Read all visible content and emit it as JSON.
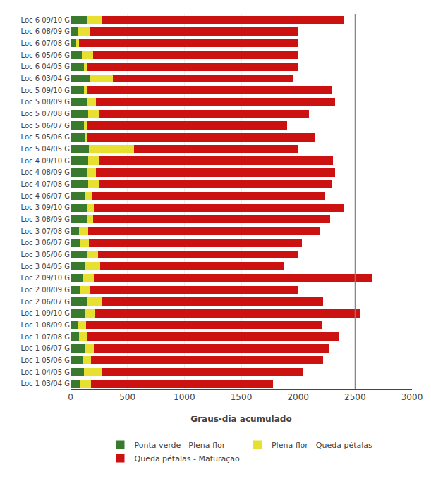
{
  "chart_data": {
    "type": "bar",
    "orientation": "horizontal",
    "stacked": true,
    "x_label": "Graus-dia acumulado",
    "categories": [
      "Loc 6 09/10 G",
      "Loc 6 08/09 G",
      "Loc 6 07/08 G",
      "Loc 6 05/06 G",
      "Loc 6 04/05 G",
      "Loc 6 03/04 G",
      "Loc 5 09/10 G",
      "Loc 5 08/09 G",
      "Loc 5 07/08 G",
      "Loc 5 06/07 G",
      "Loc 5 05/06 G",
      "Loc 5 04/05 G",
      "Loc 4 09/10 G",
      "Loc 4 08/09 G",
      "Loc 4 07/08 G",
      "Loc 4 06/07 G",
      "Loc 3 09/10 G",
      "Loc 3 08/09 G",
      "Loc 3 07/08 G",
      "Loc 3 06/07 G",
      "Loc 3 05/06 G",
      "Loc 3 04/05 G",
      "Loc 2 09/10 G",
      "Loc 2 08/09 G",
      "Loc 2 06/07 G",
      "Loc 1 09/10 G",
      "Loc 1 08/09 G",
      "Loc 1 07/08 G",
      "Loc 1 06/07 G",
      "Loc 1 05/06 G",
      "Loc 1 04/05 G",
      "Loc 1 03/04 G"
    ],
    "series": [
      {
        "name": "Ponta verde - Plena flor",
        "color": "#3a7a2e",
        "values": [
          150,
          60,
          50,
          100,
          120,
          170,
          120,
          150,
          155,
          120,
          125,
          160,
          155,
          150,
          155,
          130,
          145,
          145,
          75,
          80,
          150,
          130,
          105,
          85,
          150,
          130,
          65,
          75,
          130,
          110,
          115,
          80
        ]
      },
      {
        "name": "Plena flor - Queda pétalas",
        "color": "#e8e030",
        "values": [
          120,
          115,
          25,
          100,
          30,
          200,
          30,
          75,
          90,
          30,
          25,
          400,
          100,
          75,
          90,
          55,
          60,
          55,
          80,
          80,
          90,
          130,
          100,
          80,
          130,
          90,
          70,
          70,
          75,
          70,
          165,
          100
        ]
      },
      {
        "name": "Queda pétalas - Maturação",
        "color": "#cc1111",
        "values": [
          2130,
          1820,
          1925,
          1800,
          1845,
          1580,
          2150,
          2100,
          1850,
          1750,
          2000,
          1440,
          2050,
          2100,
          2050,
          2050,
          2200,
          2080,
          2040,
          1870,
          1760,
          1620,
          2450,
          1840,
          1940,
          2330,
          2070,
          2210,
          2070,
          2040,
          1760,
          1600
        ]
      }
    ],
    "xlim": [
      0,
      3000
    ],
    "xticks": [
      0,
      500,
      1000,
      1500,
      2000,
      2500,
      3000
    ],
    "vline_x": 2500,
    "grid": true,
    "legend": "bottom"
  }
}
